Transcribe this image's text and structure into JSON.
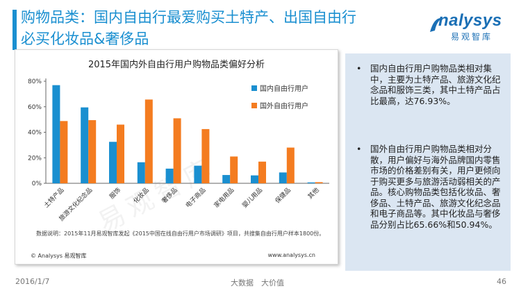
{
  "header": {
    "title_line1": "购物品类：国内自由行最爱购买土特产、出国自由行",
    "title_line2": "必买化妆品&奢侈品"
  },
  "logo": {
    "word": "nalysys",
    "sub": "易观智库"
  },
  "watermark": "易观智库",
  "chart_data": {
    "type": "bar",
    "title": "2015年国内外自由行用户购物品类偏好分析",
    "categories": [
      "土特产品",
      "旅游文化纪念品",
      "服饰",
      "化妆品",
      "奢侈品",
      "电子商品",
      "家电用品",
      "婴儿用品",
      "保健品",
      "其他"
    ],
    "series": [
      {
        "name": "国内自由行用户",
        "color": "#1a8fd0",
        "values": [
          76.93,
          59.5,
          32.5,
          16.5,
          11.5,
          13.8,
          6.5,
          6.2,
          8.5,
          0.7
        ]
      },
      {
        "name": "国外自由行用户",
        "color": "#f47c20",
        "values": [
          48.8,
          49.5,
          46.0,
          65.66,
          50.94,
          42.5,
          21.0,
          17.0,
          28.0,
          0.9
        ]
      }
    ],
    "yticks": [
      "0%",
      "20%",
      "40%",
      "60%",
      "80%"
    ],
    "ylim": [
      0,
      80
    ],
    "legend_position": "top-right",
    "grid": false
  },
  "chart_note": "数据说明：2015年11月易观智库发起《2015中国在线自由行用户市场调研》项目，共搜集自由行用户样本1800份。",
  "chart_source_left": "© Analysys 易观智库",
  "chart_source_right": "www.analysys.cn",
  "insights": [
    "国内自由行用户购物品类相对集中，主要为土特产品、旅游文化纪念品和服饰三类，其中土特产品占比最高，达76.93%。",
    "国外自由行用户购物品类相对分散，用户偏好与海外品牌国内零售市场的价格差别有关，用户更倾向于购买更多与旅游活动弱相关的产品。核心购物品类包括化妆品、奢侈品、土特产品、旅游文化纪念品和电子商品等。其中化妆品与奢侈品分别占比65.66%和50.94%。"
  ],
  "bullet": "•",
  "footer": {
    "date": "2016/1/7",
    "slogan": "大数据　大价值",
    "page": "46"
  }
}
